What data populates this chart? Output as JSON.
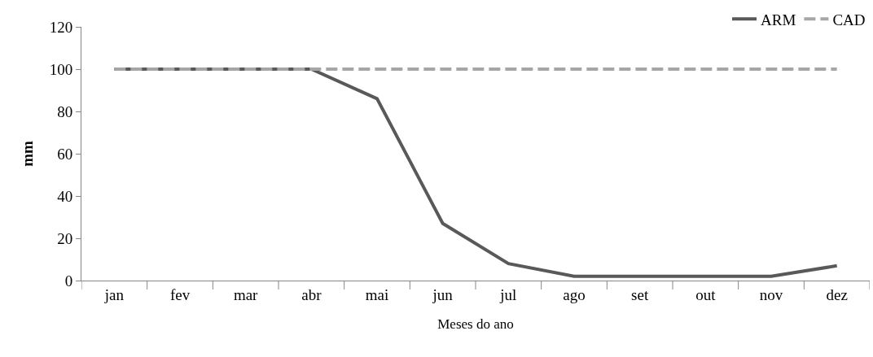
{
  "chart_data": {
    "type": "line",
    "xlabel": "Meses do ano",
    "ylabel": "mm",
    "categories": [
      "jan",
      "fev",
      "mar",
      "abr",
      "mai",
      "jun",
      "jul",
      "ago",
      "set",
      "out",
      "nov",
      "dez"
    ],
    "series": [
      {
        "name": "ARM",
        "color": "#595959",
        "values": [
          100,
          100,
          100,
          100,
          86,
          27,
          8,
          2,
          2,
          2,
          2,
          7
        ],
        "line_style": "solid"
      },
      {
        "name": "CAD",
        "color": "#a6a6a6",
        "values": [
          100,
          100,
          100,
          100,
          100,
          100,
          100,
          100,
          100,
          100,
          100,
          100
        ],
        "line_style": "dashed"
      }
    ],
    "ylim": [
      0,
      120
    ],
    "yticks": [
      0,
      20,
      40,
      60,
      80,
      100,
      120
    ],
    "grid": false,
    "legend": "top right",
    "marker": "none"
  }
}
